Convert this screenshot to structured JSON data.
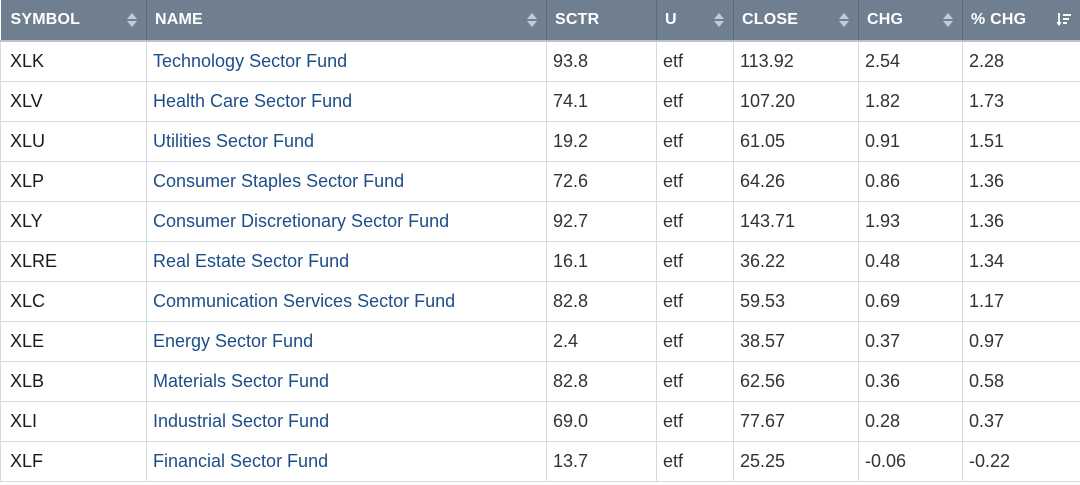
{
  "table": {
    "columns": [
      {
        "label": "SYMBOL",
        "sort_icon": "sort-arrows-icon"
      },
      {
        "label": "NAME",
        "sort_icon": "sort-arrows-icon"
      },
      {
        "label": "SCTR",
        "sort_icon": ""
      },
      {
        "label": "U",
        "sort_icon": "sort-arrows-icon"
      },
      {
        "label": "CLOSE",
        "sort_icon": "sort-arrows-icon"
      },
      {
        "label": "CHG",
        "sort_icon": "sort-arrows-icon"
      },
      {
        "label": "% CHG",
        "sort_icon": "sort-descending-icon"
      }
    ],
    "rows": [
      {
        "symbol": "XLK",
        "name": "Technology Sector Fund",
        "sctr": "93.8",
        "u": "etf",
        "close": "113.92",
        "chg": "2.54",
        "pchg": "2.28"
      },
      {
        "symbol": "XLV",
        "name": "Health Care Sector Fund",
        "sctr": "74.1",
        "u": "etf",
        "close": "107.20",
        "chg": "1.82",
        "pchg": "1.73"
      },
      {
        "symbol": "XLU",
        "name": "Utilities Sector Fund",
        "sctr": "19.2",
        "u": "etf",
        "close": "61.05",
        "chg": "0.91",
        "pchg": "1.51"
      },
      {
        "symbol": "XLP",
        "name": "Consumer Staples Sector Fund",
        "sctr": "72.6",
        "u": "etf",
        "close": "64.26",
        "chg": "0.86",
        "pchg": "1.36"
      },
      {
        "symbol": "XLY",
        "name": "Consumer Discretionary Sector Fund",
        "sctr": "92.7",
        "u": "etf",
        "close": "143.71",
        "chg": "1.93",
        "pchg": "1.36"
      },
      {
        "symbol": "XLRE",
        "name": "Real Estate Sector Fund",
        "sctr": "16.1",
        "u": "etf",
        "close": "36.22",
        "chg": "0.48",
        "pchg": "1.34"
      },
      {
        "symbol": "XLC",
        "name": "Communication Services Sector Fund",
        "sctr": "82.8",
        "u": "etf",
        "close": "59.53",
        "chg": "0.69",
        "pchg": "1.17"
      },
      {
        "symbol": "XLE",
        "name": "Energy Sector Fund",
        "sctr": "2.4",
        "u": "etf",
        "close": "38.57",
        "chg": "0.37",
        "pchg": "0.97"
      },
      {
        "symbol": "XLB",
        "name": "Materials Sector Fund",
        "sctr": "82.8",
        "u": "etf",
        "close": "62.56",
        "chg": "0.36",
        "pchg": "0.58"
      },
      {
        "symbol": "XLI",
        "name": "Industrial Sector Fund",
        "sctr": "69.0",
        "u": "etf",
        "close": "77.67",
        "chg": "0.28",
        "pchg": "0.37"
      },
      {
        "symbol": "XLF",
        "name": "Financial Sector Fund",
        "sctr": "13.7",
        "u": "etf",
        "close": "25.25",
        "chg": "-0.06",
        "pchg": "-0.22"
      }
    ]
  },
  "colors": {
    "header_bg": "#6f7f8f",
    "header_text": "#ffffff",
    "link": "#1d4e89",
    "cell_text": "#333333",
    "grid": "#d5dbe1"
  }
}
